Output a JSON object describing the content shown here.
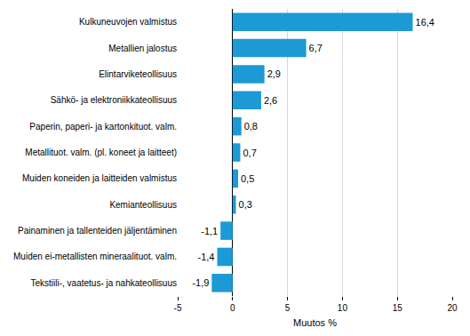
{
  "chart_data": {
    "type": "bar",
    "orientation": "horizontal",
    "categories": [
      "Kulkuneuvojen valmistus",
      "Metallien jalostus",
      "Elintarviketeollisuus",
      "Sähkö- ja elektroniikkateollisuus",
      "Paperin, paperi- ja kartonkituot. valm.",
      "Metallituot. valm. (pl. koneet ja laitteet)",
      "Muiden koneiden ja laitteiden valmistus",
      "Kemianteollisuus",
      "Painaminen ja tallenteiden jäljentäminen",
      "Muiden ei-metallisten mineraalituot. valm.",
      "Tekstiili-, vaatetus- ja nahkateollisuus"
    ],
    "values": [
      16.4,
      6.7,
      2.9,
      2.6,
      0.8,
      0.7,
      0.5,
      0.3,
      -1.1,
      -1.4,
      -1.9
    ],
    "value_labels": [
      "16,4",
      "6,7",
      "2,9",
      "2,6",
      "0,8",
      "0,7",
      "0,5",
      "0,3",
      "-1,1",
      "-1,4",
      "-1,9"
    ],
    "data_labels": true,
    "color": "#1b9ad6",
    "x_label": "Muutos %",
    "xlim": [
      -5,
      20
    ],
    "xticks": [
      -5,
      0,
      5,
      10,
      15,
      20
    ],
    "grid": true
  }
}
